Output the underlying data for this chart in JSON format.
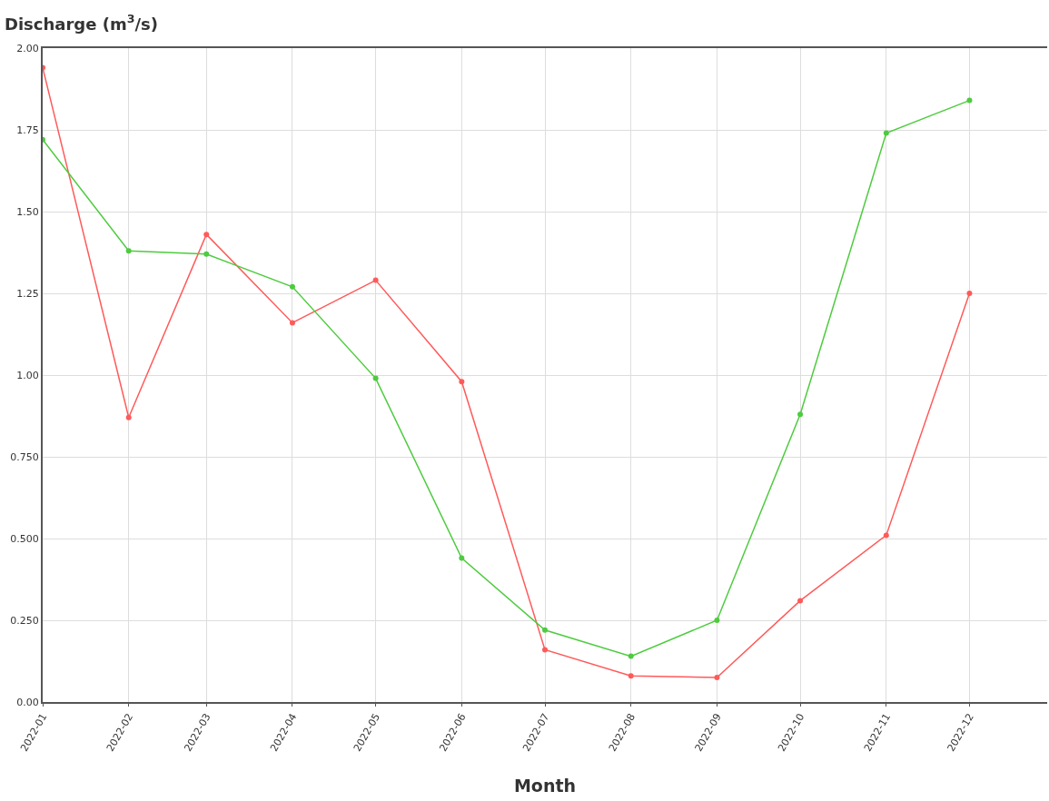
{
  "chart_data": {
    "type": "line",
    "ylabel": "Discharge (m$^{3}$/s)",
    "xlabel": "Month",
    "x": [
      "2022-01",
      "2022-02",
      "2022-03",
      "2022-04",
      "2022-05",
      "2022-06",
      "2022-07",
      "2022-08",
      "2022-09",
      "2022-10",
      "2022-11",
      "2022-12"
    ],
    "series": [
      {
        "color": "#ff5a5a",
        "values": [
          1.94,
          0.87,
          1.43,
          1.16,
          1.29,
          0.98,
          0.16,
          0.08,
          0.075,
          0.31,
          0.51,
          1.25
        ]
      },
      {
        "color": "#4ecb3f",
        "values": [
          1.72,
          1.38,
          1.37,
          1.27,
          0.99,
          0.44,
          0.22,
          0.14,
          0.25,
          0.88,
          1.74,
          1.84
        ]
      }
    ],
    "xlim": [
      "2022-01",
      "2022-12-29"
    ],
    "xticks": [
      "2022-01",
      "2022-02",
      "2022-03",
      "2022-04",
      "2022-05",
      "2022-06",
      "2022-07",
      "2022-08",
      "2022-09",
      "2022-10",
      "2022-11",
      "2022-12"
    ],
    "ylim": [
      0,
      2
    ],
    "yticks": [
      {
        "value": 0,
        "label": "0.00"
      },
      {
        "value": 0.25,
        "label": "0.250"
      },
      {
        "value": 0.5,
        "label": "0.500"
      },
      {
        "value": 0.75,
        "label": "0.750"
      },
      {
        "value": 1,
        "label": "1.00"
      },
      1.25,
      {
        "value": 1.5,
        "label": "1.50"
      },
      1.75,
      {
        "value": 2,
        "label": "2.00"
      }
    ],
    "grid": true,
    "marker": "circle",
    "line_style": "solid"
  }
}
